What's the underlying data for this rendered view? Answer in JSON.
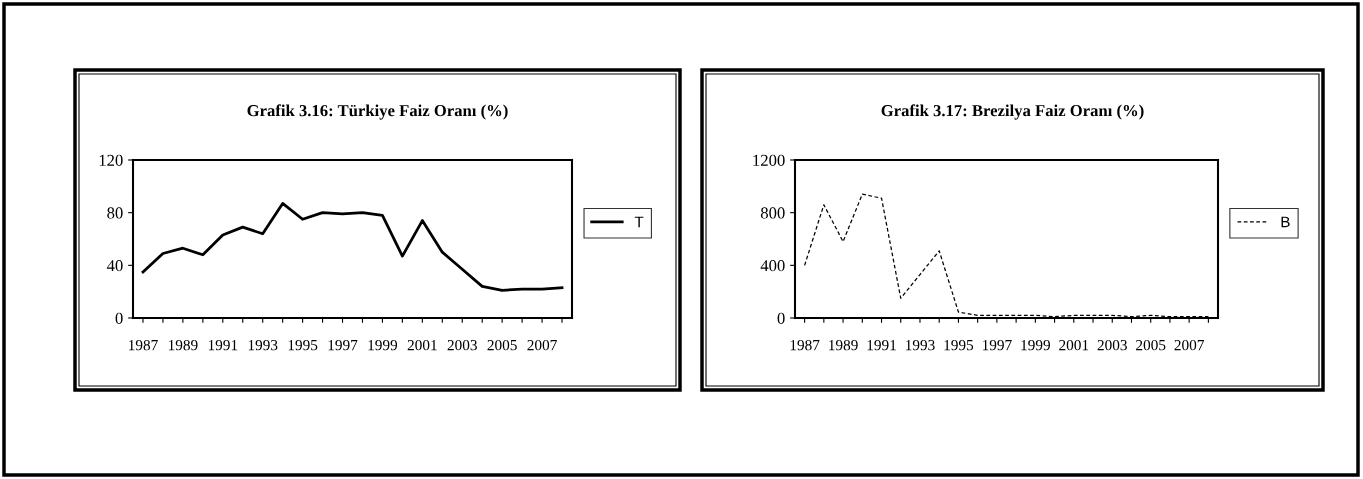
{
  "chart_data": [
    {
      "type": "line",
      "title": "Grafik 3.16: Türkiye Faiz Oranı (%)",
      "categories": [
        "1987",
        null,
        "1989",
        null,
        "1991",
        null,
        "1993",
        null,
        "1995",
        null,
        "1997",
        null,
        "1999",
        null,
        "2001",
        null,
        "2003",
        null,
        "2005",
        null,
        "2007",
        null
      ],
      "series": [
        {
          "name": "T",
          "color": "#000000",
          "line_style": "solid",
          "values": [
            35,
            49,
            53,
            48,
            63,
            69,
            64,
            87,
            75,
            80,
            79,
            80,
            78,
            47,
            74,
            50,
            37,
            24,
            21,
            22,
            22,
            23
          ]
        }
      ],
      "ylim": [
        0,
        120
      ],
      "yticks": [
        0,
        40,
        80,
        120
      ],
      "legend": "right",
      "grid": false
    },
    {
      "type": "line",
      "title": "Grafik 3.17: Brezilya Faiz Oranı (%)",
      "categories": [
        "1987",
        null,
        "1989",
        null,
        "1991",
        null,
        "1993",
        null,
        "1995",
        null,
        "1997",
        null,
        "1999",
        null,
        "2001",
        null,
        "2003",
        null,
        "2005",
        null,
        "2007",
        null
      ],
      "series": [
        {
          "name": "B",
          "color": "#000000",
          "line_style": "dashed",
          "values": [
            400,
            860,
            580,
            940,
            910,
            150,
            330,
            510,
            45,
            20,
            20,
            20,
            20,
            10,
            20,
            20,
            20,
            10,
            20,
            10,
            10,
            10
          ]
        }
      ],
      "ylim": [
        0,
        1200
      ],
      "yticks": [
        0,
        400,
        800,
        1200
      ],
      "legend": "right",
      "grid": false
    }
  ]
}
